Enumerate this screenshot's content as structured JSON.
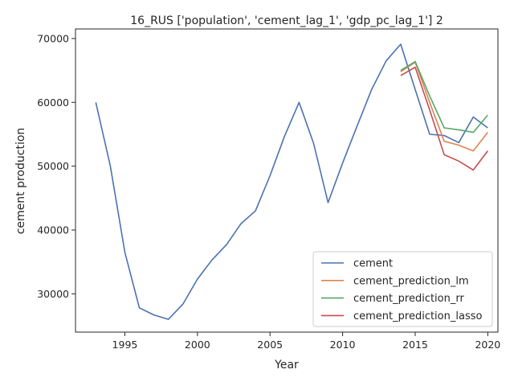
{
  "chart_data": {
    "type": "line",
    "title": "16_RUS ['population', 'cement_lag_1', 'gdp_pc_lag_1'] 2",
    "xlabel": "Year",
    "ylabel": "cement production",
    "xlim": [
      1991.6,
      2020.7
    ],
    "ylim": [
      24000,
      71500
    ],
    "xticks": [
      1995,
      2000,
      2005,
      2010,
      2015,
      2020
    ],
    "yticks": [
      30000,
      40000,
      50000,
      60000,
      70000
    ],
    "legend_position": "lower right",
    "grid": false,
    "series": [
      {
        "name": "cement",
        "color": "#4c72b0",
        "x": [
          1993,
          1994,
          1995,
          1996,
          1997,
          1998,
          1999,
          2000,
          2001,
          2002,
          2003,
          2004,
          2005,
          2006,
          2007,
          2008,
          2009,
          2010,
          2011,
          2012,
          2013,
          2014,
          2015,
          2016,
          2017,
          2018,
          2019,
          2020
        ],
        "y": [
          60000,
          50000,
          36500,
          27800,
          26700,
          26000,
          28400,
          32300,
          35300,
          37700,
          41000,
          43000,
          48500,
          54700,
          60000,
          53600,
          44300,
          50500,
          56300,
          62000,
          66500,
          69100,
          62000,
          55000,
          54800,
          53700,
          57700,
          56000
        ]
      },
      {
        "name": "cement_prediction_lm",
        "color": "#dd8452",
        "x": [
          2014,
          2015,
          2016,
          2017,
          2018,
          2019,
          2020
        ],
        "y": [
          64800,
          66300,
          60000,
          53900,
          53300,
          52400,
          55300
        ]
      },
      {
        "name": "cement_prediction_rr",
        "color": "#55a868",
        "x": [
          2014,
          2015,
          2016,
          2017,
          2018,
          2019,
          2020
        ],
        "y": [
          65000,
          66400,
          61000,
          56000,
          55700,
          55300,
          58000
        ]
      },
      {
        "name": "cement_prediction_lasso",
        "color": "#c44e52",
        "x": [
          2014,
          2015,
          2016,
          2017,
          2018,
          2019,
          2020
        ],
        "y": [
          64200,
          65500,
          58800,
          51800,
          50800,
          49400,
          52400
        ]
      }
    ]
  }
}
